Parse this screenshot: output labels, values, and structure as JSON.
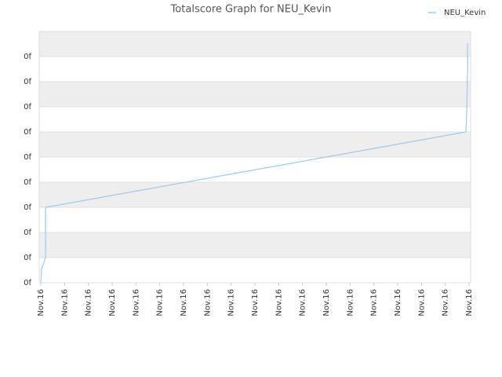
{
  "chart_data": {
    "type": "line",
    "title": "Totalscore Graph for NEU_Kevin",
    "series": [
      {
        "name": "NEU_Kevin",
        "color": "#9ec9ef",
        "x": [
          0,
          0.03,
          0.2,
          0.2,
          17.87,
          17.9,
          17.94,
          17.94
        ],
        "values": [
          0,
          0.53,
          1,
          3,
          6,
          6.78,
          8.6,
          9.53
        ]
      }
    ],
    "xlim": [
      0,
      18
    ],
    "xticks": [
      {
        "value": 0,
        "label": "Nov.16"
      },
      {
        "value": 1,
        "label": "Nov.16"
      },
      {
        "value": 2,
        "label": "Nov.16"
      },
      {
        "value": 3,
        "label": "Nov.16"
      },
      {
        "value": 4,
        "label": "Nov.16"
      },
      {
        "value": 5,
        "label": "Nov.16"
      },
      {
        "value": 6,
        "label": "Nov.16"
      },
      {
        "value": 7,
        "label": "Nov.16"
      },
      {
        "value": 8,
        "label": "Nov.16"
      },
      {
        "value": 9,
        "label": "Nov.16"
      },
      {
        "value": 10,
        "label": "Nov.16"
      },
      {
        "value": 11,
        "label": "Nov.16"
      },
      {
        "value": 12,
        "label": "Nov.16"
      },
      {
        "value": 13,
        "label": "Nov.16"
      },
      {
        "value": 14,
        "label": "Nov.16"
      },
      {
        "value": 15,
        "label": "Nov.16"
      },
      {
        "value": 16,
        "label": "Nov.16"
      },
      {
        "value": 17,
        "label": "Nov.16"
      },
      {
        "value": 18,
        "label": "Nov.16"
      }
    ],
    "ylim": [
      0,
      10
    ],
    "yticks": [
      {
        "value": 0,
        "label": "0f"
      },
      {
        "value": 1,
        "label": "0f"
      },
      {
        "value": 2,
        "label": "0f"
      },
      {
        "value": 3,
        "label": "0f"
      },
      {
        "value": 4,
        "label": "0f"
      },
      {
        "value": 5,
        "label": "0f"
      },
      {
        "value": 6,
        "label": "0f"
      },
      {
        "value": 7,
        "label": "0f"
      },
      {
        "value": 8,
        "label": "0f"
      },
      {
        "value": 9,
        "label": "0f"
      }
    ],
    "grid": true,
    "legend": "top-right"
  }
}
